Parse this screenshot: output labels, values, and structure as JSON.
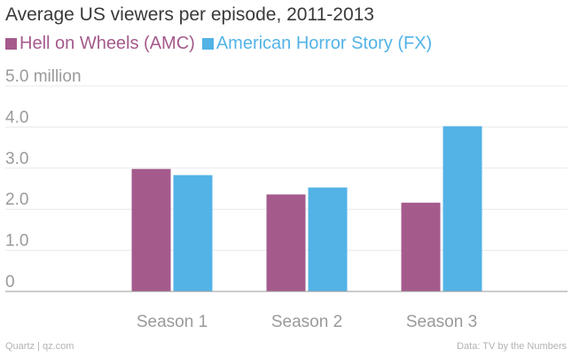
{
  "chart_data": {
    "type": "bar",
    "title": "Average US viewers per episode, 2011-2013",
    "categories": [
      "Season 1",
      "Season 2",
      "Season 3"
    ],
    "series": [
      {
        "name": "Hell on Wheels (AMC)",
        "values": [
          2.98,
          2.36,
          2.16
        ],
        "color": "#a55a8c"
      },
      {
        "name": "American Horror Story (FX)",
        "values": [
          2.83,
          2.53,
          4.02
        ],
        "color": "#53b3e6"
      }
    ],
    "yticks": [
      {
        "value": 0,
        "label": "0"
      },
      {
        "value": 1,
        "label": "1.0"
      },
      {
        "value": 2,
        "label": "2.0"
      },
      {
        "value": 3,
        "label": "3.0"
      },
      {
        "value": 4,
        "label": "4.0"
      },
      {
        "value": 5,
        "label": "5.0 million"
      }
    ],
    "ylim": [
      0,
      5
    ],
    "grid": true,
    "legend_position": "top-left",
    "xlabel": "",
    "ylabel": ""
  },
  "footer": {
    "source_left": "Quartz | qz.com",
    "source_right": "Data: TV by the Numbers"
  }
}
